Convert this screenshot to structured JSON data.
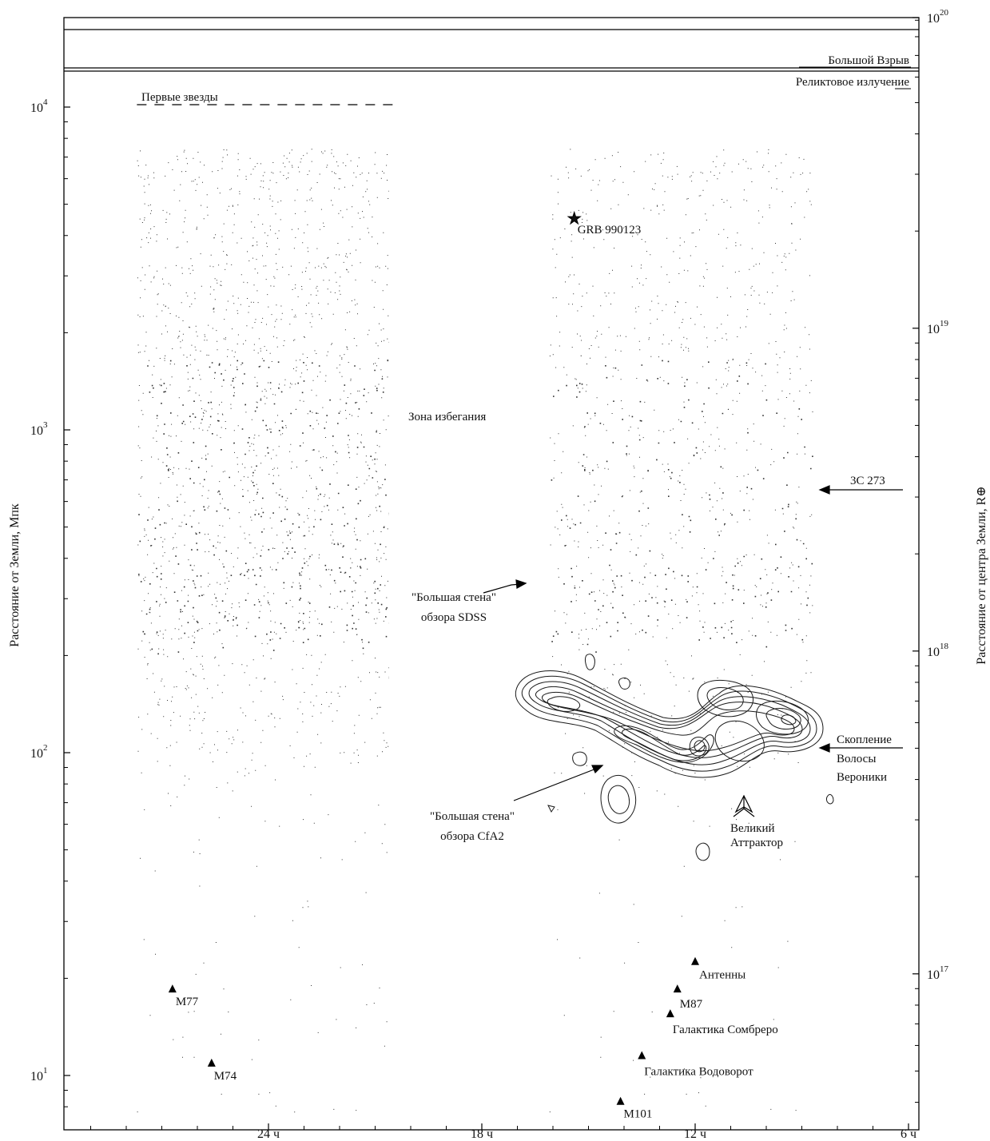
{
  "chart_data": {
    "type": "scatter",
    "title": "",
    "xlabel": "",
    "ylabel": "Расстояние от Земли, Мпк",
    "ylabel_right": "Расстояние от центра Земли, R⊕",
    "y_scale": "log",
    "ylim": [
      7.7,
      22000
    ],
    "xlim_hours": [
      29.7,
      5.7
    ],
    "x_ticks": [
      {
        "hours": 24,
        "label": "24 ч"
      },
      {
        "hours": 18,
        "label": "18 ч"
      },
      {
        "hours": 12,
        "label": "12 ч"
      },
      {
        "hours": 6,
        "label": "6 ч"
      }
    ],
    "y_ticks_left": [
      {
        "mpc": 10,
        "label_base": "10",
        "label_exp": "1"
      },
      {
        "mpc": 100,
        "label_base": "10",
        "label_exp": "2"
      },
      {
        "mpc": 1000,
        "label_base": "10",
        "label_exp": "3"
      },
      {
        "mpc": 10000,
        "label_base": "10",
        "label_exp": "4"
      }
    ],
    "y_ticks_right": [
      {
        "earth_radii_exp": 17,
        "label_base": "10",
        "label_exp": "17"
      },
      {
        "earth_radii_exp": 18,
        "label_base": "10",
        "label_exp": "18"
      },
      {
        "earth_radii_exp": 19,
        "label_base": "10",
        "label_exp": "19"
      },
      {
        "earth_radii_exp": 20,
        "label_base": "10",
        "label_exp": "20"
      }
    ],
    "boundaries": [
      {
        "label": "Большой Взрыв"
      },
      {
        "label": "Реликтовое излучение"
      }
    ],
    "first_stars": {
      "label": "Первые звезды",
      "mpc": 11500,
      "hours_from": 27.7,
      "hours_to": 20.5
    },
    "survey_regions": [
      {
        "name": "left",
        "hours_from": 27.7,
        "hours_to": 20.5,
        "mpc_max": 7800
      },
      {
        "name": "right",
        "hours_from": 16.1,
        "hours_to": 8.0,
        "mpc_max": 7800
      }
    ],
    "zone_of_avoidance": {
      "label": "Зона избегания",
      "hours": 18.0,
      "mpc": 1030
    },
    "objects": [
      {
        "label": "M77",
        "hours": 26.7,
        "mpc": 18.5,
        "marker": "triangle"
      },
      {
        "label": "M74",
        "hours": 25.6,
        "mpc": 10.9,
        "marker": "triangle"
      },
      {
        "label": "M101",
        "hours": 14.1,
        "mpc": 8.3,
        "marker": "triangle"
      },
      {
        "label": "Галактика Водоворот",
        "hours": 13.5,
        "mpc": 11.5,
        "marker": "triangle"
      },
      {
        "label": "Галактика Сомбреро",
        "hours": 12.7,
        "mpc": 15.5,
        "marker": "triangle"
      },
      {
        "label": "M87",
        "hours": 12.5,
        "mpc": 18.5,
        "marker": "triangle"
      },
      {
        "label": "Антенны",
        "hours": 12.0,
        "mpc": 22.5,
        "marker": "triangle"
      },
      {
        "label": "GRB 990123",
        "hours": 15.4,
        "mpc": 4500,
        "marker": "star"
      }
    ],
    "annotations": [
      {
        "label": "3C 273",
        "hours": 8.5,
        "mpc": 630
      },
      {
        "label_lines": [
          "\"Большая стена\"",
          "обзора SDSS"
        ],
        "hours": 16.3,
        "mpc": 320
      },
      {
        "label_lines": [
          "\"Большая стена\"",
          "обзора CfA2"
        ],
        "hours": 14.4,
        "mpc": 92
      },
      {
        "label_lines": [
          "Скопление",
          "Волосы",
          "Вероники"
        ],
        "hours": 8.5,
        "mpc": 101
      },
      {
        "label_lines": [
          "Великий",
          "Аттрактор"
        ],
        "hours": 10.6,
        "mpc": 66
      }
    ]
  }
}
